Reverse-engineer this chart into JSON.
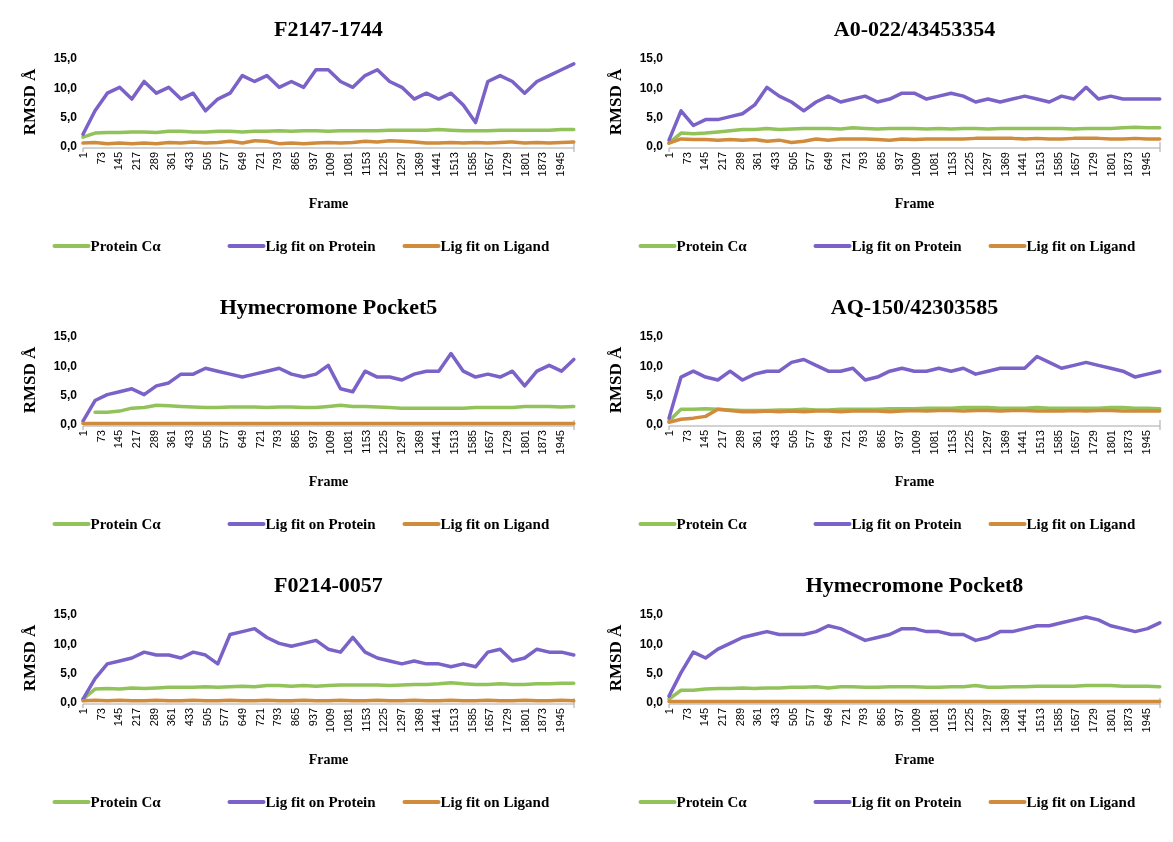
{
  "chart_data": [
    {
      "type": "line",
      "title": "F2147-1744",
      "xlabel": "Frame",
      "ylabel": "RMSD Å",
      "legend": "bottom",
      "xlim": [
        1,
        2001
      ],
      "xticks": [
        1,
        73,
        145,
        217,
        289,
        361,
        433,
        505,
        577,
        649,
        721,
        793,
        865,
        937,
        1009,
        1081,
        1153,
        1225,
        1297,
        1369,
        1441,
        1513,
        1585,
        1657,
        1729,
        1801,
        1873,
        1945
      ],
      "ylim": [
        0,
        15
      ],
      "yticks": [
        {
          "value": 0,
          "label": "0,0"
        },
        {
          "value": 5,
          "label": "5,0"
        },
        {
          "value": 10,
          "label": "10,0"
        },
        {
          "value": 15,
          "label": "15,0"
        }
      ],
      "x": [
        1,
        50,
        100,
        150,
        200,
        250,
        300,
        350,
        400,
        450,
        500,
        550,
        600,
        650,
        700,
        750,
        800,
        850,
        900,
        950,
        1000,
        1050,
        1100,
        1150,
        1200,
        1250,
        1300,
        1350,
        1400,
        1450,
        1500,
        1550,
        1600,
        1650,
        1700,
        1750,
        1800,
        1850,
        1900,
        1950,
        2000
      ],
      "series": [
        {
          "name": "Protein Cα",
          "color": "#92c25a",
          "values": [
            1.5,
            2.2,
            2.3,
            2.3,
            2.4,
            2.4,
            2.3,
            2.5,
            2.5,
            2.4,
            2.4,
            2.5,
            2.5,
            2.4,
            2.5,
            2.5,
            2.6,
            2.5,
            2.6,
            2.6,
            2.5,
            2.6,
            2.6,
            2.6,
            2.6,
            2.7,
            2.7,
            2.7,
            2.7,
            2.8,
            2.7,
            2.6,
            2.6,
            2.6,
            2.7,
            2.7,
            2.7,
            2.7,
            2.7,
            2.8,
            2.8
          ]
        },
        {
          "name": "Lig fit on Protein",
          "color": "#7a62c8",
          "values": [
            2,
            6,
            9,
            10,
            8,
            11,
            9,
            10,
            8,
            9,
            6,
            8,
            9,
            12,
            11,
            12,
            10,
            11,
            10,
            13,
            13,
            11,
            10,
            12,
            13,
            11,
            10,
            8,
            9,
            8,
            9,
            7,
            4,
            11,
            12,
            11,
            9,
            11,
            12,
            13,
            14
          ]
        },
        {
          "name": "Lig fit on Ligand",
          "color": "#d08c3c",
          "values": [
            0.5,
            0.6,
            0.4,
            0.5,
            0.4,
            0.5,
            0.4,
            0.6,
            0.5,
            0.7,
            0.5,
            0.6,
            0.8,
            0.5,
            0.9,
            0.8,
            0.4,
            0.5,
            0.4,
            0.5,
            0.6,
            0.5,
            0.6,
            0.8,
            0.7,
            0.9,
            0.8,
            0.7,
            0.5,
            0.5,
            0.6,
            0.5,
            0.6,
            0.5,
            0.6,
            0.7,
            0.5,
            0.6,
            0.5,
            0.6,
            0.7
          ]
        }
      ]
    },
    {
      "type": "line",
      "title": "A0-022/43453354",
      "xlabel": "Frame",
      "ylabel": "RMSD Å",
      "legend": "bottom",
      "xlim": [
        1,
        2001
      ],
      "xticks": [
        1,
        73,
        145,
        217,
        289,
        361,
        433,
        505,
        577,
        649,
        721,
        793,
        865,
        937,
        1009,
        1081,
        1153,
        1225,
        1297,
        1369,
        1441,
        1513,
        1585,
        1657,
        1729,
        1801,
        1873,
        1945
      ],
      "ylim": [
        0,
        15
      ],
      "yticks": [
        {
          "value": 0,
          "label": "0,0"
        },
        {
          "value": 5,
          "label": "5,0"
        },
        {
          "value": 10,
          "label": "10,0"
        },
        {
          "value": 15,
          "label": "15,0"
        }
      ],
      "x": [
        1,
        50,
        100,
        150,
        200,
        250,
        300,
        350,
        400,
        450,
        500,
        550,
        600,
        650,
        700,
        750,
        800,
        850,
        900,
        950,
        1000,
        1050,
        1100,
        1150,
        1200,
        1250,
        1300,
        1350,
        1400,
        1450,
        1500,
        1550,
        1600,
        1650,
        1700,
        1750,
        1800,
        1850,
        1900,
        1950,
        2000
      ],
      "series": [
        {
          "name": "Protein Cα",
          "color": "#92c25a",
          "values": [
            0.5,
            2.2,
            2.1,
            2.2,
            2.4,
            2.6,
            2.8,
            2.8,
            3,
            2.8,
            2.9,
            3,
            3,
            3,
            2.9,
            3.1,
            3,
            2.9,
            3,
            3,
            3,
            2.9,
            3,
            2.9,
            3,
            3,
            2.9,
            3,
            3,
            3,
            3,
            3,
            3,
            2.9,
            3,
            3,
            3,
            3.1,
            3.2,
            3.1,
            3.1
          ]
        },
        {
          "name": "Lig fit on Protein",
          "color": "#7a62c8",
          "values": [
            1,
            6,
            3.5,
            4.5,
            4.5,
            5,
            5.5,
            7,
            10,
            8.5,
            7.5,
            6,
            7.5,
            8.5,
            7.5,
            8,
            8.5,
            7.5,
            8,
            9,
            9,
            8,
            8.5,
            9,
            8.5,
            7.5,
            8,
            7.5,
            8,
            8.5,
            8,
            7.5,
            8.5,
            8,
            10,
            8,
            8.5,
            8,
            8,
            8,
            8
          ]
        },
        {
          "name": "Lig fit on Ligand",
          "color": "#d08c3c",
          "values": [
            0.5,
            1.2,
            1.1,
            1.1,
            1,
            1.1,
            1,
            1.1,
            0.8,
            1,
            0.6,
            0.8,
            1.2,
            1,
            1.2,
            1.2,
            1.2,
            1.1,
            1,
            1.2,
            1.1,
            1.2,
            1.2,
            1.2,
            1.2,
            1.3,
            1.3,
            1.3,
            1.3,
            1.2,
            1.3,
            1.2,
            1.2,
            1.3,
            1.3,
            1.3,
            1.2,
            1.2,
            1.3,
            1.2,
            1.2
          ]
        }
      ]
    },
    {
      "type": "line",
      "title": "Hymecromone Pocket5",
      "xlabel": "Frame",
      "ylabel": "RMSD Å",
      "legend": "bottom",
      "xlim": [
        1,
        2001
      ],
      "xticks": [
        1,
        73,
        145,
        217,
        289,
        361,
        433,
        505,
        577,
        649,
        721,
        793,
        865,
        937,
        1009,
        1081,
        1153,
        1225,
        1297,
        1369,
        1441,
        1513,
        1585,
        1657,
        1729,
        1801,
        1873,
        1945
      ],
      "ylim": [
        0,
        15
      ],
      "yticks": [
        {
          "value": 0,
          "label": "0,0"
        },
        {
          "value": 5,
          "label": "5,0"
        },
        {
          "value": 10,
          "label": "10,0"
        },
        {
          "value": 15,
          "label": "15,0"
        }
      ],
      "x": [
        1,
        50,
        100,
        150,
        200,
        250,
        300,
        350,
        400,
        450,
        500,
        550,
        600,
        650,
        700,
        750,
        800,
        850,
        900,
        950,
        1000,
        1050,
        1100,
        1150,
        1200,
        1250,
        1300,
        1350,
        1400,
        1450,
        1500,
        1550,
        1600,
        1650,
        1700,
        1750,
        1800,
        1850,
        1900,
        1950,
        2000
      ],
      "series": [
        {
          "name": "Protein Cα",
          "color": "#92c25a",
          "values": [
            null,
            2,
            2,
            2.2,
            2.7,
            2.8,
            3.2,
            3.1,
            3,
            2.9,
            2.8,
            2.8,
            2.9,
            2.9,
            2.9,
            2.8,
            2.9,
            2.9,
            2.8,
            2.8,
            3,
            3.2,
            3,
            3,
            2.9,
            2.8,
            2.7,
            2.7,
            2.7,
            2.7,
            2.7,
            2.7,
            2.8,
            2.8,
            2.8,
            2.8,
            3,
            3,
            3,
            2.9,
            3
          ]
        },
        {
          "name": "Lig fit on Protein",
          "color": "#7a62c8",
          "values": [
            0.5,
            4,
            5,
            5.5,
            6,
            5,
            6.5,
            7,
            8.5,
            8.5,
            9.5,
            9,
            8.5,
            8,
            8.5,
            9,
            9.5,
            8.5,
            8,
            8.5,
            10,
            6,
            5.5,
            9,
            8,
            8,
            7.5,
            8.5,
            9,
            9,
            12,
            9,
            8,
            8.5,
            8,
            9,
            6.5,
            9,
            10,
            9,
            11
          ]
        },
        {
          "name": "Lig fit on Ligand",
          "color": "#d08c3c",
          "values": [
            0.1,
            0.1,
            0.1,
            0.1,
            0.1,
            0.1,
            0.1,
            0.1,
            0.1,
            0.1,
            0.1,
            0.1,
            0.1,
            0.1,
            0.1,
            0.1,
            0.1,
            0.1,
            0.1,
            0.1,
            0.1,
            0.1,
            0.1,
            0.1,
            0.1,
            0.1,
            0.1,
            0.1,
            0.1,
            0.1,
            0.1,
            0.1,
            0.1,
            0.1,
            0.1,
            0.1,
            0.1,
            0.1,
            0.1,
            0.1,
            0.1
          ]
        }
      ]
    },
    {
      "type": "line",
      "title": "AQ-150/42303585",
      "xlabel": "Frame",
      "ylabel": "RMSD Å",
      "legend": "bottom",
      "xlim": [
        1,
        2001
      ],
      "xticks": [
        1,
        73,
        145,
        217,
        289,
        361,
        433,
        505,
        577,
        649,
        721,
        793,
        865,
        937,
        1009,
        1081,
        1153,
        1225,
        1297,
        1369,
        1441,
        1513,
        1585,
        1657,
        1729,
        1801,
        1873,
        1945
      ],
      "ylim": [
        0,
        15
      ],
      "yticks": [
        {
          "value": 0,
          "label": "0,0"
        },
        {
          "value": 5,
          "label": "5,0"
        },
        {
          "value": 10,
          "label": "10,0"
        },
        {
          "value": 15,
          "label": "15,0"
        }
      ],
      "x": [
        1,
        50,
        100,
        150,
        200,
        250,
        300,
        350,
        400,
        450,
        500,
        550,
        600,
        650,
        700,
        750,
        800,
        850,
        900,
        950,
        1000,
        1050,
        1100,
        1150,
        1200,
        1250,
        1300,
        1350,
        1400,
        1450,
        1500,
        1550,
        1600,
        1650,
        1700,
        1750,
        1800,
        1850,
        1900,
        1950,
        2000
      ],
      "series": [
        {
          "name": "Protein Cα",
          "color": "#92c25a",
          "values": [
            0.5,
            2.5,
            2.5,
            2.6,
            2.5,
            2.4,
            2.3,
            2.3,
            2.3,
            2.4,
            2.4,
            2.5,
            2.4,
            2.4,
            2.5,
            2.5,
            2.5,
            2.5,
            2.6,
            2.6,
            2.6,
            2.7,
            2.7,
            2.7,
            2.8,
            2.8,
            2.8,
            2.7,
            2.7,
            2.7,
            2.8,
            2.7,
            2.7,
            2.7,
            2.7,
            2.7,
            2.8,
            2.8,
            2.7,
            2.7,
            2.6
          ]
        },
        {
          "name": "Lig fit on Protein",
          "color": "#7a62c8",
          "values": [
            1,
            8,
            9,
            8,
            7.5,
            9,
            7.5,
            8.5,
            9,
            9,
            10.5,
            11,
            10,
            9,
            9,
            9.5,
            7.5,
            8,
            9,
            9.5,
            9,
            9,
            9.5,
            9,
            9.5,
            8.5,
            9,
            9.5,
            9.5,
            9.5,
            11.5,
            10.5,
            9.5,
            10,
            10.5,
            10,
            9.5,
            9,
            8,
            8.5,
            9
          ]
        },
        {
          "name": "Lig fit on Ligand",
          "color": "#d08c3c",
          "values": [
            0.3,
            0.8,
            1,
            1.3,
            2.5,
            2.3,
            2.1,
            2.1,
            2.2,
            2.1,
            2.2,
            2.1,
            2.2,
            2.2,
            2.1,
            2.2,
            2.2,
            2.2,
            2.1,
            2.2,
            2.3,
            2.2,
            2.3,
            2.3,
            2.2,
            2.3,
            2.3,
            2.2,
            2.3,
            2.3,
            2.2,
            2.2,
            2.2,
            2.3,
            2.2,
            2.3,
            2.3,
            2.2,
            2.2,
            2.2,
            2.2
          ]
        }
      ]
    },
    {
      "type": "line",
      "title": "F0214-0057",
      "xlabel": "Frame",
      "ylabel": "RMSD Å",
      "legend": "bottom",
      "xlim": [
        1,
        2001
      ],
      "xticks": [
        1,
        73,
        145,
        217,
        289,
        361,
        433,
        505,
        577,
        649,
        721,
        793,
        865,
        937,
        1009,
        1081,
        1153,
        1225,
        1297,
        1369,
        1441,
        1513,
        1585,
        1657,
        1729,
        1801,
        1873,
        1945
      ],
      "ylim": [
        0,
        15
      ],
      "yticks": [
        {
          "value": 0,
          "label": "0,0"
        },
        {
          "value": 5,
          "label": "5,0"
        },
        {
          "value": 10,
          "label": "10,0"
        },
        {
          "value": 15,
          "label": "15,0"
        }
      ],
      "x": [
        1,
        50,
        100,
        150,
        200,
        250,
        300,
        350,
        400,
        450,
        500,
        550,
        600,
        650,
        700,
        750,
        800,
        850,
        900,
        950,
        1000,
        1050,
        1100,
        1150,
        1200,
        1250,
        1300,
        1350,
        1400,
        1450,
        1500,
        1550,
        1600,
        1650,
        1700,
        1750,
        1800,
        1850,
        1900,
        1950,
        2000
      ],
      "series": [
        {
          "name": "Protein Cα",
          "color": "#92c25a",
          "values": [
            0.5,
            2.2,
            2.3,
            2.2,
            2.4,
            2.3,
            2.4,
            2.5,
            2.5,
            2.5,
            2.6,
            2.5,
            2.6,
            2.7,
            2.6,
            2.8,
            2.8,
            2.7,
            2.8,
            2.7,
            2.8,
            2.9,
            2.9,
            2.9,
            2.9,
            2.8,
            2.9,
            3,
            3,
            3.1,
            3.3,
            3.1,
            3,
            3,
            3.1,
            3,
            3,
            3.1,
            3.1,
            3.2,
            3.2
          ]
        },
        {
          "name": "Lig fit on Protein",
          "color": "#7a62c8",
          "values": [
            0.5,
            4,
            6.5,
            7,
            7.5,
            8.5,
            8,
            8,
            7.5,
            8.5,
            8,
            6.5,
            11.5,
            12,
            12.5,
            11,
            10,
            9.5,
            10,
            10.5,
            9,
            8.5,
            11,
            8.5,
            7.5,
            7,
            6.5,
            7,
            6.5,
            6.5,
            6,
            6.5,
            6,
            8.5,
            9,
            7,
            7.5,
            9,
            8.5,
            8.5,
            8
          ]
        },
        {
          "name": "Lig fit on Ligand",
          "color": "#d08c3c",
          "values": [
            0.2,
            0.3,
            0.2,
            0.3,
            0.2,
            0.2,
            0.3,
            0.2,
            0.2,
            0.3,
            0.2,
            0.2,
            0.3,
            0.2,
            0.2,
            0.3,
            0.2,
            0.2,
            0.3,
            0.2,
            0.2,
            0.3,
            0.2,
            0.2,
            0.3,
            0.2,
            0.2,
            0.3,
            0.2,
            0.2,
            0.3,
            0.2,
            0.2,
            0.3,
            0.2,
            0.2,
            0.3,
            0.2,
            0.2,
            0.3,
            0.2
          ]
        }
      ]
    },
    {
      "type": "line",
      "title": "Hymecromone Pocket8",
      "xlabel": "Frame",
      "ylabel": "RMSD Å",
      "legend": "bottom",
      "xlim": [
        1,
        2001
      ],
      "xticks": [
        1,
        73,
        145,
        217,
        289,
        361,
        433,
        505,
        577,
        649,
        721,
        793,
        865,
        937,
        1009,
        1081,
        1153,
        1225,
        1297,
        1369,
        1441,
        1513,
        1585,
        1657,
        1729,
        1801,
        1873,
        1945
      ],
      "ylim": [
        0,
        15
      ],
      "yticks": [
        {
          "value": 0,
          "label": "0,0"
        },
        {
          "value": 5,
          "label": "5,0"
        },
        {
          "value": 10,
          "label": "10,0"
        },
        {
          "value": 15,
          "label": "15,0"
        }
      ],
      "x": [
        1,
        50,
        100,
        150,
        200,
        250,
        300,
        350,
        400,
        450,
        500,
        550,
        600,
        650,
        700,
        750,
        800,
        850,
        900,
        950,
        1000,
        1050,
        1100,
        1150,
        1200,
        1250,
        1300,
        1350,
        1400,
        1450,
        1500,
        1550,
        1600,
        1650,
        1700,
        1750,
        1800,
        1850,
        1900,
        1950,
        2000
      ],
      "series": [
        {
          "name": "Protein Cα",
          "color": "#92c25a",
          "values": [
            0.5,
            2,
            2,
            2.2,
            2.3,
            2.3,
            2.4,
            2.3,
            2.4,
            2.4,
            2.5,
            2.5,
            2.6,
            2.4,
            2.6,
            2.6,
            2.5,
            2.5,
            2.6,
            2.6,
            2.6,
            2.5,
            2.5,
            2.6,
            2.6,
            2.8,
            2.5,
            2.5,
            2.6,
            2.6,
            2.7,
            2.7,
            2.7,
            2.7,
            2.8,
            2.8,
            2.8,
            2.7,
            2.7,
            2.7,
            2.6
          ]
        },
        {
          "name": "Lig fit on Protein",
          "color": "#7a62c8",
          "values": [
            1,
            5,
            8.5,
            7.5,
            9,
            10,
            11,
            11.5,
            12,
            11.5,
            11.5,
            11.5,
            12,
            13,
            12.5,
            11.5,
            10.5,
            11,
            11.5,
            12.5,
            12.5,
            12,
            12,
            11.5,
            11.5,
            10.5,
            11,
            12,
            12,
            12.5,
            13,
            13,
            13.5,
            14,
            14.5,
            14,
            13,
            12.5,
            12,
            12.5,
            13.5
          ]
        },
        {
          "name": "Lig fit on Ligand",
          "color": "#d08c3c",
          "values": [
            0.1,
            0.1,
            0.1,
            0.1,
            0.1,
            0.1,
            0.1,
            0.1,
            0.1,
            0.1,
            0.1,
            0.1,
            0.1,
            0.1,
            0.1,
            0.1,
            0.1,
            0.1,
            0.1,
            0.1,
            0.1,
            0.1,
            0.1,
            0.1,
            0.1,
            0.1,
            0.1,
            0.1,
            0.1,
            0.1,
            0.1,
            0.1,
            0.1,
            0.1,
            0.1,
            0.1,
            0.1,
            0.1,
            0.1,
            0.1,
            0.1
          ]
        }
      ]
    }
  ]
}
